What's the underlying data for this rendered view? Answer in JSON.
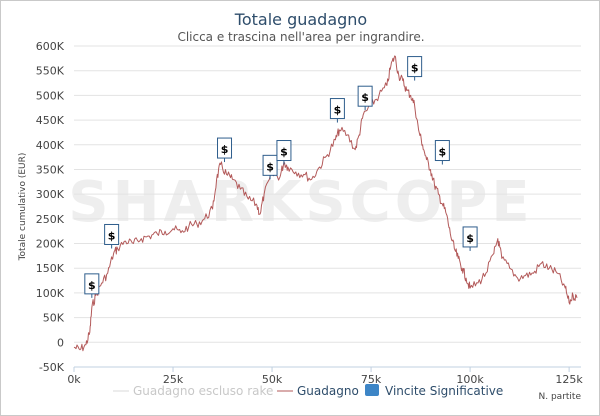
{
  "chart_data": {
    "type": "line",
    "title": "Totale guadagno",
    "subtitle": "Clicca e trascina nell'area per ingrandire.",
    "ylabel": "Totale cumulativo (EUR)",
    "xlabel": "N. partite",
    "watermark": "SHARKSCOPE",
    "xlim": [
      0,
      128000
    ],
    "ylim": [
      -50000,
      600000
    ],
    "x_ticks": [
      0,
      25000,
      50000,
      75000,
      100000,
      125000
    ],
    "x_tick_labels": [
      "0k",
      "25k",
      "50k",
      "75k",
      "100k",
      "125k"
    ],
    "y_ticks": [
      -50000,
      0,
      50000,
      100000,
      150000,
      200000,
      250000,
      300000,
      350000,
      400000,
      450000,
      500000,
      550000,
      600000
    ],
    "y_tick_labels": [
      "-50K",
      "0",
      "50K",
      "100K",
      "150K",
      "200K",
      "250K",
      "300K",
      "350K",
      "400K",
      "450K",
      "500K",
      "550K",
      "600K"
    ],
    "grid": "horizontal",
    "legend_position": "bottom",
    "series": [
      {
        "name": "Guadagno escluso rake",
        "color": "#d8d8d8",
        "visible": false,
        "x": [],
        "y": []
      },
      {
        "name": "Guadagno",
        "color": "#b35a5a",
        "x": [
          0,
          1500,
          3000,
          4000,
          4500,
          5500,
          7000,
          8500,
          10000,
          11000,
          13000,
          15000,
          17000,
          19000,
          21000,
          23000,
          25000,
          27000,
          29000,
          31000,
          33000,
          35000,
          36000,
          37000,
          38500,
          40000,
          42000,
          44000,
          46000,
          47000,
          48000,
          50000,
          52000,
          53000,
          54000,
          56000,
          58000,
          60000,
          62000,
          64000,
          66000,
          67000,
          69000,
          71000,
          72000,
          73000,
          75000,
          77000,
          79000,
          80000,
          81000,
          82000,
          83000,
          84000,
          85000,
          86000,
          87000,
          88000,
          89000,
          90000,
          91000,
          92000,
          93000,
          94000,
          95000,
          96000,
          97000,
          98000,
          99000,
          100000,
          102000,
          104000,
          106000,
          107000,
          108000,
          110000,
          112000,
          114000,
          116000,
          118000,
          120000,
          122000,
          124000,
          125000,
          126000,
          127000
        ],
        "y": [
          -10000,
          -15000,
          -5000,
          20000,
          70000,
          95000,
          120000,
          140000,
          180000,
          190000,
          205000,
          200000,
          210000,
          215000,
          220000,
          225000,
          230000,
          222000,
          235000,
          240000,
          250000,
          270000,
          330000,
          360000,
          340000,
          330000,
          310000,
          290000,
          280000,
          260000,
          300000,
          340000,
          335000,
          365000,
          355000,
          345000,
          340000,
          330000,
          355000,
          380000,
          410000,
          430000,
          420000,
          390000,
          420000,
          460000,
          480000,
          500000,
          520000,
          560000,
          580000,
          540000,
          530000,
          510000,
          500000,
          480000,
          430000,
          400000,
          370000,
          350000,
          320000,
          300000,
          280000,
          260000,
          220000,
          190000,
          170000,
          150000,
          130000,
          110000,
          120000,
          140000,
          180000,
          210000,
          170000,
          150000,
          130000,
          135000,
          140000,
          160000,
          150000,
          140000,
          110000,
          80000,
          95000,
          90000
        ]
      }
    ],
    "significant_wins": {
      "name": "Vincite Significative",
      "color": "#3d85c6",
      "symbol": "$",
      "x": [
        4500,
        9500,
        38000,
        49500,
        53000,
        66500,
        73500,
        86000,
        93000,
        100000
      ],
      "y": [
        90000,
        190000,
        365000,
        330000,
        360000,
        445000,
        470000,
        530000,
        360000,
        185000
      ]
    }
  }
}
